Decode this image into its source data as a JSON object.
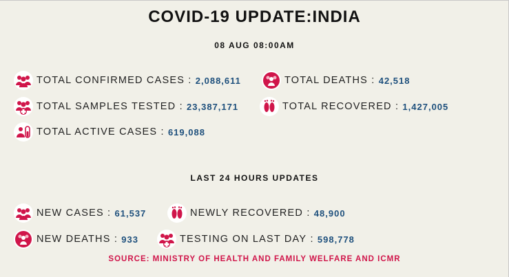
{
  "header": {
    "title": "COVID-19 UPDATE:INDIA",
    "datetime": "08 AUG 08:00AM"
  },
  "totals": [
    {
      "label": "TOTAL CONFIRMED CASES",
      "value": "2,088,611",
      "icon": "people-group-icon"
    },
    {
      "label": "TOTAL DEATHS",
      "value": "42,518",
      "icon": "people-circle-icon"
    },
    {
      "label": "TOTAL SAMPLES TESTED",
      "value": "23,387,171",
      "icon": "people-medical-icon"
    },
    {
      "label": "TOTAL RECOVERED",
      "value": "1,427,005",
      "icon": "footprints-icon"
    },
    {
      "label": "TOTAL ACTIVE CASES",
      "value": "619,088",
      "icon": "person-test-tube-icon"
    }
  ],
  "last24": {
    "title": "LAST 24 HOURS UPDATES",
    "items": [
      {
        "label": "NEW CASES",
        "value": "61,537",
        "icon": "people-group-icon"
      },
      {
        "label": "NEWLY RECOVERED",
        "value": "48,900",
        "icon": "footprints-icon"
      },
      {
        "label": "NEW DEATHS",
        "value": "933",
        "icon": "people-circle-icon"
      },
      {
        "label": "TESTING ON LAST DAY",
        "value": "598,778",
        "icon": "people-medical-icon"
      }
    ]
  },
  "source": "SOURCE: MINISTRY OF HEALTH AND FAMILY WELFARE AND ICMR",
  "colors": {
    "background": "#f1f0e8",
    "accent": "#d0154a",
    "value": "#1d4f7c"
  }
}
